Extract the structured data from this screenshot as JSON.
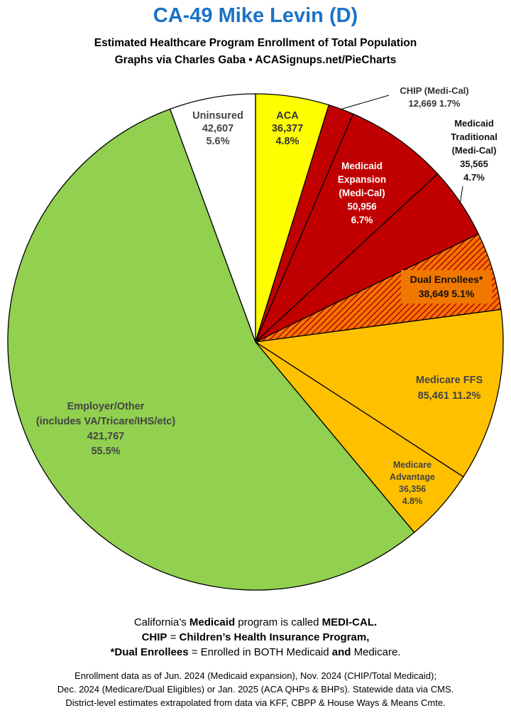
{
  "header": {
    "title": "CA-49 Mike Levin (D)",
    "subtitle_1": "Estimated Healthcare Program Enrollment of Total Population",
    "subtitle_2": "Graphs via Charles Gaba  •  ACASignups.net/PieCharts"
  },
  "colors": {
    "aca": "#ffff00",
    "chip": "#c00000",
    "medicaid_expansion": "#c00000",
    "medicaid_traditional": "#c00000",
    "dual": "#f07800",
    "medicare_ffs": "#ffc000",
    "medicare_advantage": "#ffc000",
    "employer": "#92d050",
    "uninsured": "#ffffff",
    "title": "#1a73c8"
  },
  "chart_data": {
    "type": "pie",
    "title": "CA-49 Mike Levin (D)",
    "start": "12 o'clock",
    "direction": "clockwise",
    "slices": [
      {
        "key": "aca",
        "name": "ACA",
        "value": 36377,
        "percent": 4.8,
        "value_label": "36,377",
        "percent_label": "4.8%"
      },
      {
        "key": "chip",
        "name": "CHIP (Medi-Cal)",
        "value": 12669,
        "percent": 1.7,
        "value_label": "12,669 1.7%"
      },
      {
        "key": "medicaid_expansion",
        "name": "Medicaid Expansion (Medi-Cal)",
        "value": 50956,
        "percent": 6.7,
        "value_label": "50,956",
        "percent_label": "6.7%"
      },
      {
        "key": "medicaid_traditional",
        "name": "Medicaid Traditional (Medi-Cal)",
        "value": 35565,
        "percent": 4.7,
        "value_label": "35,565",
        "percent_label": "4.7%"
      },
      {
        "key": "dual",
        "name": "Dual Enrollees*",
        "value": 38649,
        "percent": 5.1,
        "value_label": "38,649 5.1%"
      },
      {
        "key": "medicare_ffs",
        "name": "Medicare FFS",
        "value": 85461,
        "percent": 11.2,
        "value_label": "85,461 11.2%"
      },
      {
        "key": "medicare_advantage",
        "name": "Medicare Advantage",
        "value": 36356,
        "percent": 4.8,
        "value_label": "36,356",
        "percent_label": "4.8%"
      },
      {
        "key": "employer",
        "name": "Employer/Other",
        "name_2": "(includes VA/Tricare/IHS/etc)",
        "value": 421767,
        "percent": 55.5,
        "value_label": "421,767",
        "percent_label": "55.5%"
      },
      {
        "key": "uninsured",
        "name": "Uninsured",
        "value": 42607,
        "percent": 5.6,
        "value_label": "42,607",
        "percent_label": "5.6%"
      }
    ]
  },
  "labels": {
    "medicaid_label_lines": [
      "Medicaid",
      "Expansion",
      "(Medi-Cal)"
    ],
    "traditional_label_lines": [
      "Medicaid",
      "Traditional",
      "(Medi-Cal)"
    ],
    "advantage_label_lines": [
      "Medicare",
      "Advantage"
    ]
  },
  "notes": {
    "line1_pre": "California’s ",
    "line1_b1": "Medicaid",
    "line1_mid": " program is called ",
    "line1_b2": "MEDI-CAL.",
    "line2_b1": "CHIP",
    "line2_mid": " = ",
    "line2_b2": "Children’s Health Insurance Program,",
    "line3_b1": "*Dual Enrollees",
    "line3_mid": " = Enrolled in BOTH Medicaid ",
    "line3_b2": "and",
    "line3_post": " Medicare."
  },
  "footer": {
    "line1": "Enrollment data as of Jun. 2024 (Medicaid expansion), Nov. 2024 (CHIP/Total Medicaid);",
    "line2": "Dec. 2024 (Medicare/Dual Eligibles) or Jan. 2025 (ACA QHPs & BHPs). Statewide data via CMS.",
    "line3": "District-level estimates extrapolated from data via KFF, CBPP & House Ways & Means Cmte."
  }
}
